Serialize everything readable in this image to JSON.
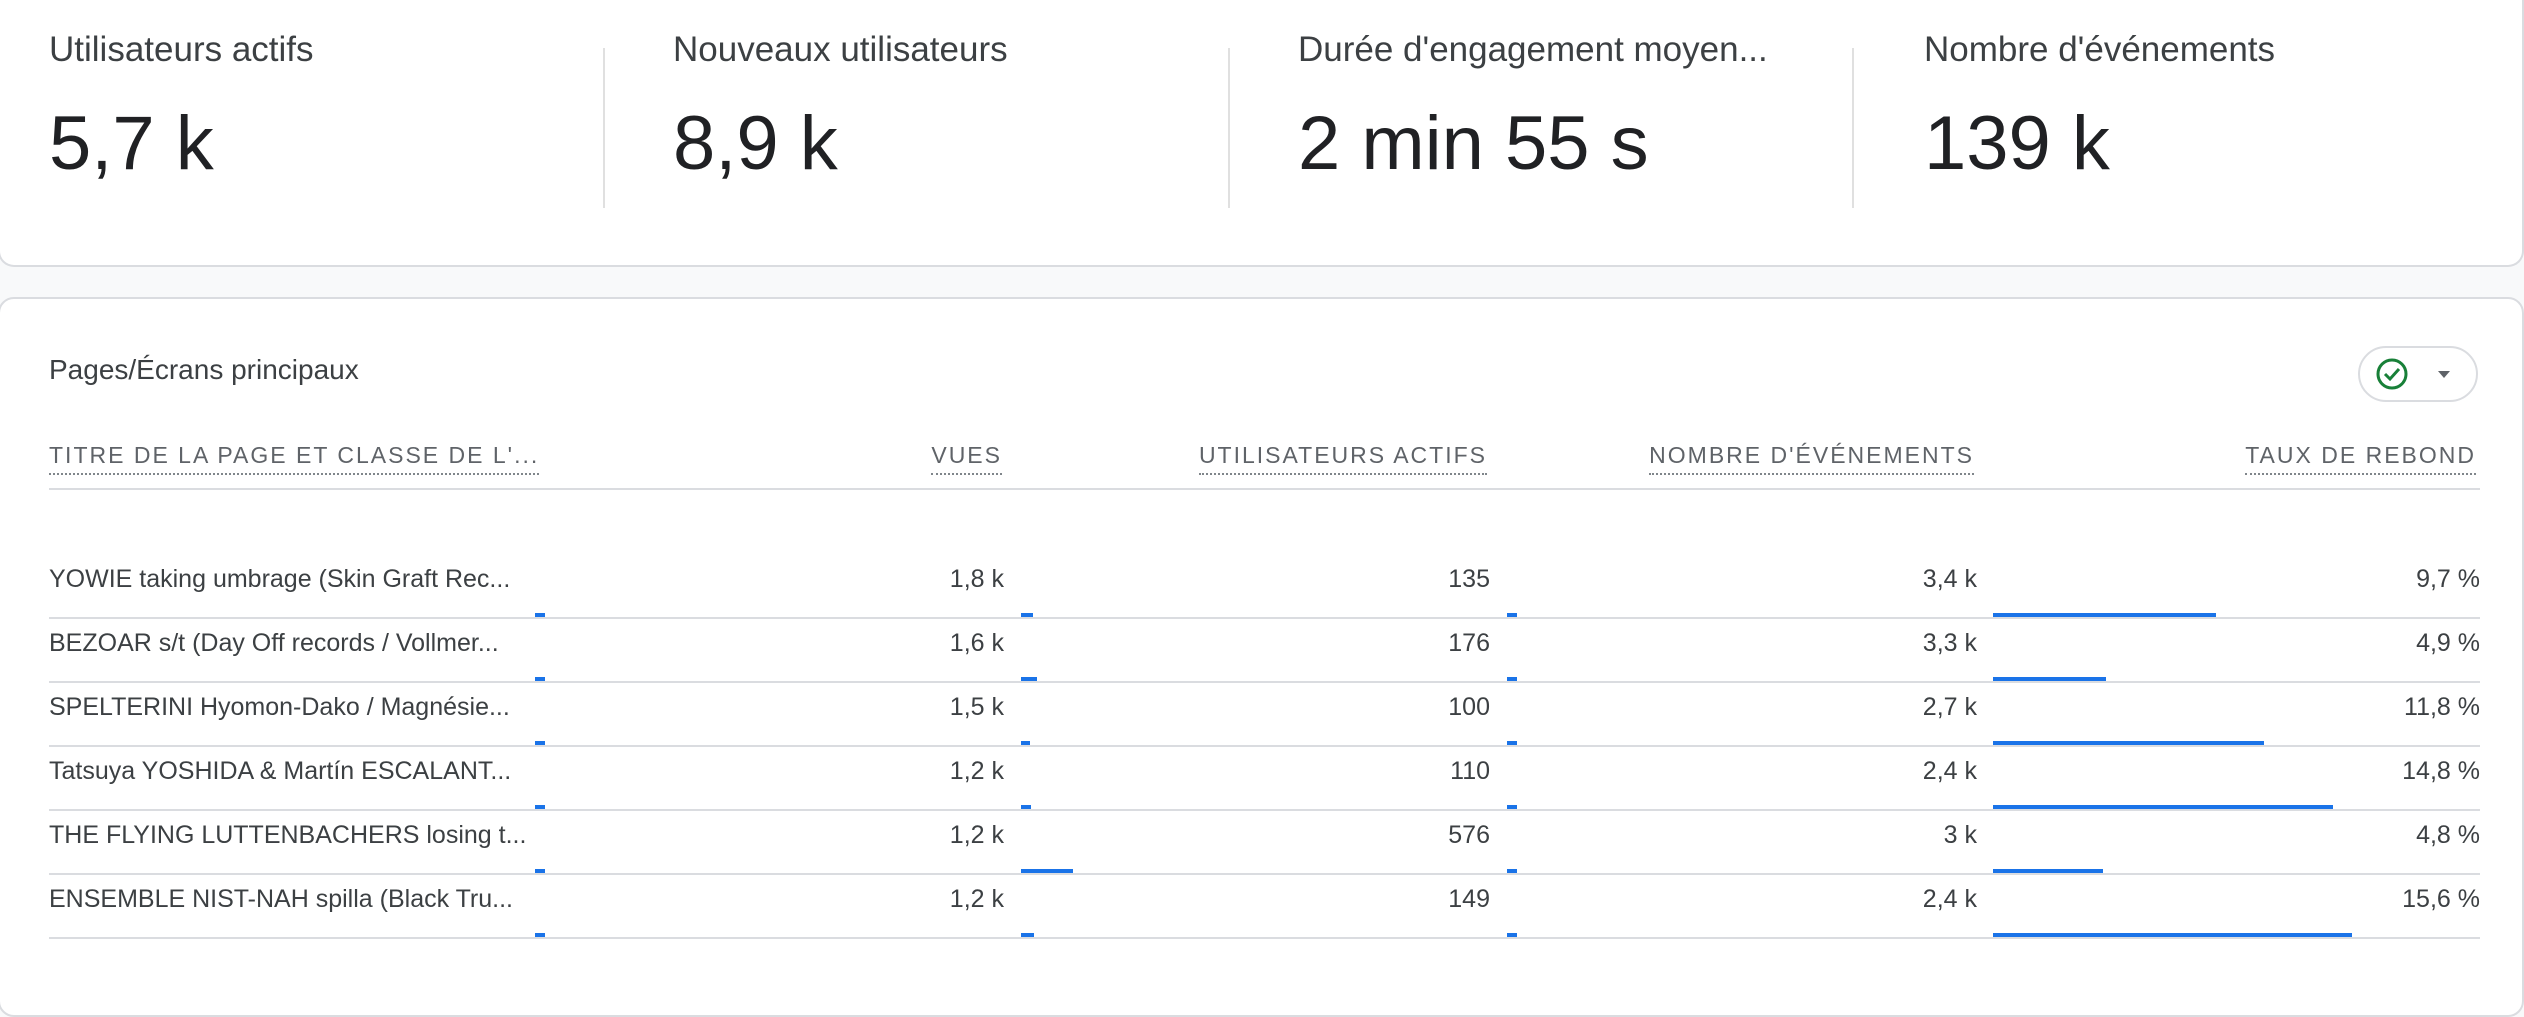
{
  "kpis": [
    {
      "label": "Utilisateurs actifs",
      "value": "5,7 k"
    },
    {
      "label": "Nouveaux utilisateurs",
      "value": "8,9 k"
    },
    {
      "label": "Durée d'engagement moyen...",
      "value": "2 min 55 s"
    },
    {
      "label": "Nombre d'événements",
      "value": "139 k"
    }
  ],
  "table": {
    "title": "Pages/Écrans principaux",
    "filter_icon": "check-circle-icon",
    "accent_color": "#1a73e8",
    "status_color": "#188038",
    "columns": [
      "TITRE DE LA PAGE ET CLASSE DE L'...",
      "VUES",
      "UTILISATEURS ACTIFS",
      "NOMBRE D'ÉVÉNEMENTS",
      "TAUX DE REBOND"
    ],
    "rows": [
      {
        "title": "YOWIE taking umbrage (Skin Graft Rec...",
        "views": "1,8 k",
        "users": "135",
        "events": "3,4 k",
        "bounce": "9,7 %",
        "views_n": 1800,
        "users_n": 135,
        "events_n": 3400,
        "bounce_n": 9.7
      },
      {
        "title": "BEZOAR s/t (Day Off records / Vollmer...",
        "views": "1,6 k",
        "users": "176",
        "events": "3,3 k",
        "bounce": "4,9 %",
        "views_n": 1600,
        "users_n": 176,
        "events_n": 3300,
        "bounce_n": 4.9
      },
      {
        "title": "SPELTERINI Hyomon-Dako / Magnésie...",
        "views": "1,5 k",
        "users": "100",
        "events": "2,7 k",
        "bounce": "11,8 %",
        "views_n": 1500,
        "users_n": 100,
        "events_n": 2700,
        "bounce_n": 11.8
      },
      {
        "title": "Tatsuya YOSHIDA & Martín ESCALANT...",
        "views": "1,2 k",
        "users": "110",
        "events": "2,4 k",
        "bounce": "14,8 %",
        "views_n": 1200,
        "users_n": 110,
        "events_n": 2400,
        "bounce_n": 14.8
      },
      {
        "title": "THE FLYING LUTTENBACHERS losing t...",
        "views": "1,2 k",
        "users": "576",
        "events": "3 k",
        "bounce": "4,8 %",
        "views_n": 1200,
        "users_n": 576,
        "events_n": 3000,
        "bounce_n": 4.8
      },
      {
        "title": "ENSEMBLE NIST-NAH spilla (Black Tru...",
        "views": "1,2 k",
        "users": "149",
        "events": "2,4 k",
        "bounce": "15,6 %",
        "views_n": 1200,
        "users_n": 149,
        "events_n": 2400,
        "bounce_n": 15.6
      }
    ]
  }
}
